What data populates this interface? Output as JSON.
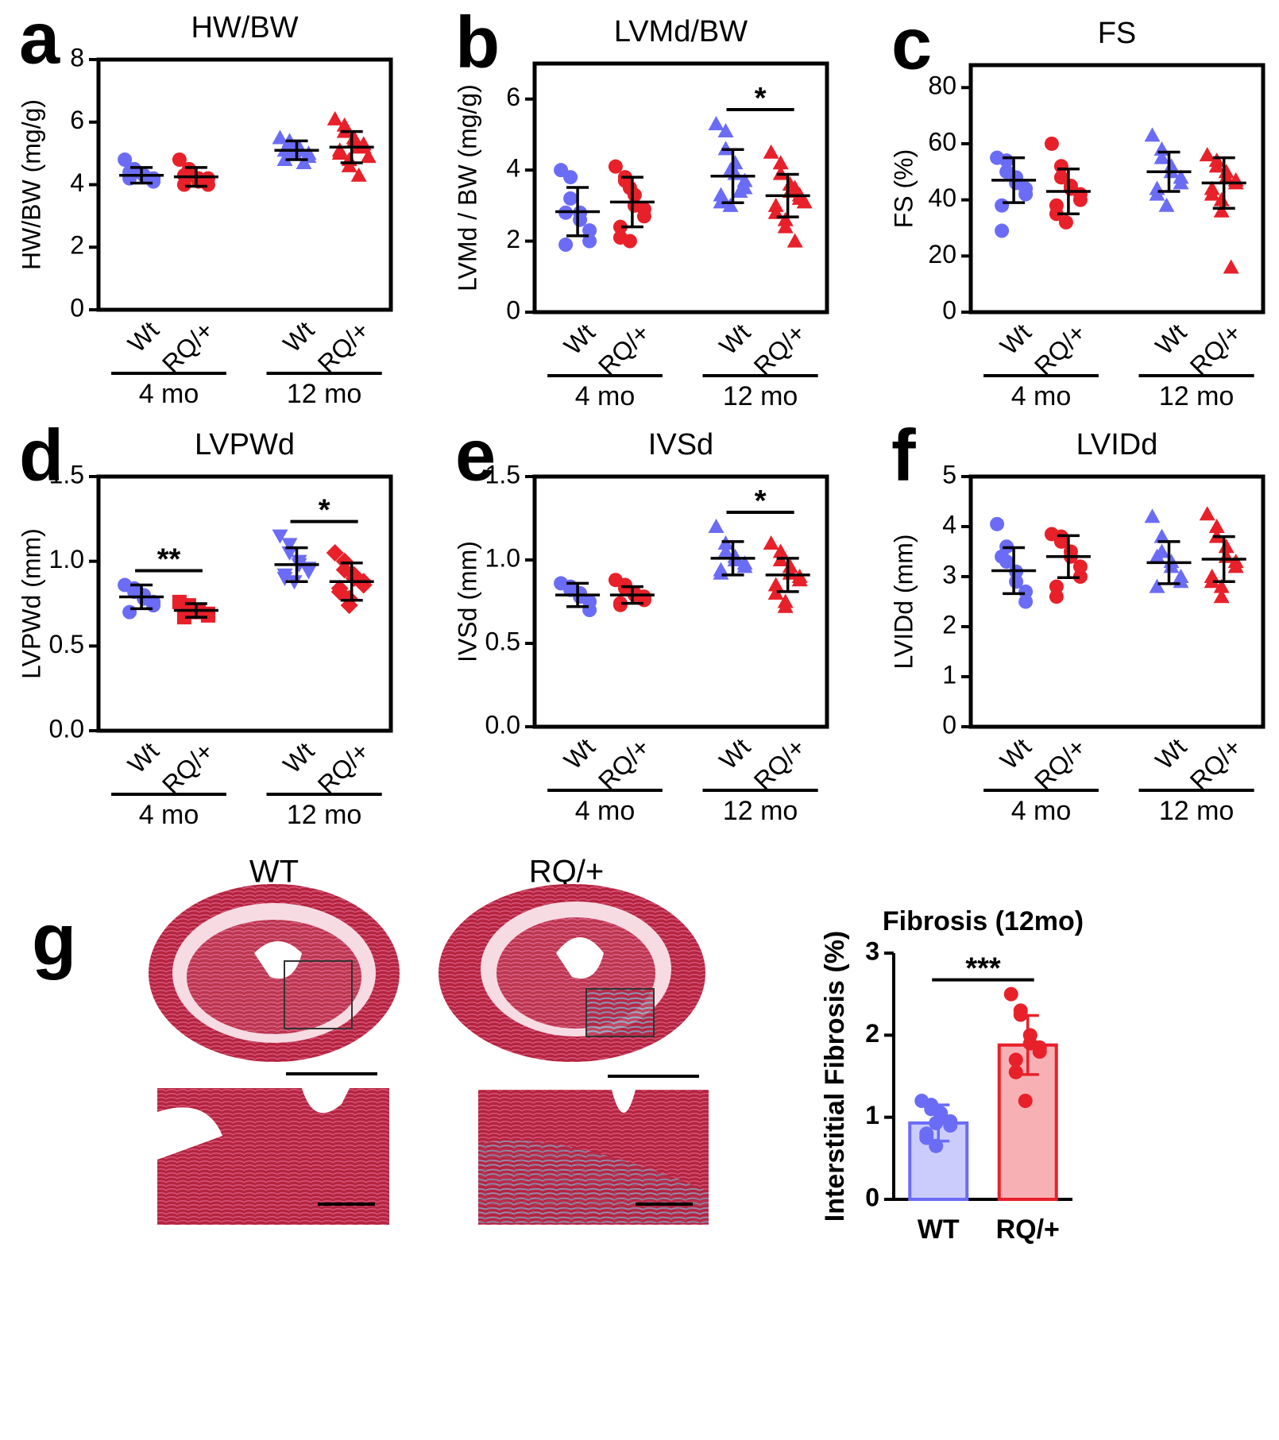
{
  "chart_data": [
    {
      "type": "dot",
      "panel_label": "a",
      "title": "HW/BW",
      "y_label": "HW/BW (mg/g)",
      "ylim": [
        0,
        8
      ],
      "yticks": [
        0,
        2,
        4,
        6,
        8
      ],
      "categories": [
        "Wt",
        "RQ/+",
        "Wt",
        "RQ/+"
      ],
      "group_labels": [
        "4 mo",
        "12 mo"
      ],
      "groups": [
        {
          "color": "#6b6cf5",
          "marker": "circle",
          "mean": 4.3,
          "sd": 0.25,
          "points": [
            4.8,
            4.5,
            4.4,
            4.3,
            4.3,
            4.2,
            4.1,
            4.2,
            4.4
          ]
        },
        {
          "color": "#e8202a",
          "marker": "circle",
          "mean": 4.25,
          "sd": 0.3,
          "points": [
            4.8,
            4.5,
            4.3,
            4.2,
            4.1,
            4.0,
            4.2,
            4.3,
            4.0
          ]
        },
        {
          "color": "#6b6cf5",
          "marker": "triangle",
          "mean": 5.1,
          "sd": 0.3,
          "points": [
            5.5,
            5.4,
            5.3,
            5.2,
            5.1,
            5.0,
            4.9,
            4.8,
            5.1,
            5.0,
            5.2,
            4.7
          ]
        },
        {
          "color": "#e8202a",
          "marker": "triangle",
          "mean": 5.2,
          "sd": 0.5,
          "points": [
            6.1,
            5.9,
            5.7,
            5.5,
            5.4,
            5.3,
            5.2,
            5.1,
            5.0,
            4.8,
            4.6,
            4.3,
            5.2,
            4.9
          ]
        }
      ],
      "significance": []
    },
    {
      "type": "dot",
      "panel_label": "b",
      "title": "LVMd/BW",
      "y_label": "LVMd / BW (mg/g)",
      "ylim": [
        0,
        7
      ],
      "yticks": [
        0,
        2,
        4,
        6
      ],
      "categories": [
        "Wt",
        "RQ/+",
        "Wt",
        "RQ/+"
      ],
      "group_labels": [
        "4 mo",
        "12 mo"
      ],
      "groups": [
        {
          "color": "#6b6cf5",
          "marker": "circle",
          "mean": 2.83,
          "sd": 0.68,
          "points": [
            4.0,
            3.8,
            3.2,
            2.8,
            2.6,
            2.3,
            2.0,
            1.9,
            2.8
          ]
        },
        {
          "color": "#e8202a",
          "marker": "circle",
          "mean": 3.1,
          "sd": 0.7,
          "points": [
            4.1,
            3.8,
            3.7,
            3.3,
            3.0,
            2.9,
            2.7,
            2.4,
            2.1,
            2.0,
            3.5
          ]
        },
        {
          "color": "#6b6cf5",
          "marker": "triangle",
          "mean": 3.83,
          "sd": 0.75,
          "points": [
            5.3,
            5.1,
            4.6,
            4.2,
            3.9,
            3.7,
            3.5,
            3.3,
            3.1,
            3.0,
            4.0,
            3.4
          ]
        },
        {
          "color": "#e8202a",
          "marker": "triangle",
          "mean": 3.28,
          "sd": 0.6,
          "points": [
            4.5,
            4.2,
            3.9,
            3.6,
            3.4,
            3.3,
            3.2,
            3.0,
            2.8,
            2.6,
            2.4,
            2.0,
            3.5,
            3.1
          ]
        }
      ],
      "significance": [
        {
          "label": "*",
          "between": [
            2,
            3
          ]
        }
      ]
    },
    {
      "type": "dot",
      "panel_label": "c",
      "title": "FS",
      "y_label": "FS (%)",
      "ylim": [
        0,
        88
      ],
      "yticks": [
        0,
        20,
        40,
        60,
        80
      ],
      "categories": [
        "Wt",
        "RQ/+",
        "Wt",
        "RQ/+"
      ],
      "group_labels": [
        "4 mo",
        "12 mo"
      ],
      "groups": [
        {
          "color": "#6b6cf5",
          "marker": "circle",
          "mean": 47,
          "sd": 8,
          "points": [
            55,
            54,
            50,
            48,
            46,
            44,
            42,
            38,
            29
          ]
        },
        {
          "color": "#e8202a",
          "marker": "circle",
          "mean": 43,
          "sd": 8,
          "points": [
            60,
            52,
            48,
            45,
            44,
            42,
            40,
            38,
            35,
            32
          ]
        },
        {
          "color": "#6b6cf5",
          "marker": "triangle",
          "mean": 50,
          "sd": 7,
          "points": [
            63,
            58,
            55,
            52,
            50,
            48,
            46,
            44,
            42,
            38
          ]
        },
        {
          "color": "#e8202a",
          "marker": "triangle",
          "mean": 46,
          "sd": 9,
          "points": [
            56,
            54,
            52,
            50,
            48,
            47,
            46,
            44,
            42,
            40,
            36,
            16
          ]
        }
      ],
      "significance": []
    },
    {
      "type": "dot",
      "panel_label": "d",
      "title": "LVPWd",
      "y_label": "LVPWd (mm)",
      "ylim": [
        0,
        1.5
      ],
      "yticks": [
        {
          "value": 0,
          "label": "0.0"
        },
        0.5,
        {
          "value": 1,
          "label": "1.0"
        },
        1.5
      ],
      "categories": [
        "Wt",
        "RQ/+",
        "Wt",
        "RQ/+"
      ],
      "group_labels": [
        "4 mo",
        "12 mo"
      ],
      "groups": [
        {
          "color": "#6b6cf5",
          "marker": "circle",
          "mean": 0.79,
          "sd": 0.07,
          "points": [
            0.86,
            0.84,
            0.82,
            0.8,
            0.78,
            0.76,
            0.74,
            0.7
          ]
        },
        {
          "color": "#e8202a",
          "marker": "square",
          "mean": 0.71,
          "sd": 0.04,
          "points": [
            0.76,
            0.74,
            0.72,
            0.71,
            0.7,
            0.69,
            0.68,
            0.67
          ]
        },
        {
          "color": "#6b6cf5",
          "marker": "triangle-down",
          "mean": 0.98,
          "sd": 0.1,
          "points": [
            1.15,
            1.1,
            1.05,
            1.0,
            0.98,
            0.96,
            0.94,
            0.92,
            0.9,
            0.88
          ]
        },
        {
          "color": "#e8202a",
          "marker": "diamond",
          "mean": 0.88,
          "sd": 0.11,
          "points": [
            1.05,
            1.0,
            0.95,
            0.92,
            0.9,
            0.88,
            0.86,
            0.84,
            0.82,
            0.78,
            0.74
          ]
        }
      ],
      "significance": [
        {
          "label": "**",
          "between": [
            0,
            1
          ]
        },
        {
          "label": "*",
          "between": [
            2,
            3
          ]
        }
      ]
    },
    {
      "type": "dot",
      "panel_label": "e",
      "title": "IVSd",
      "y_label": "IVSd (mm)",
      "ylim": [
        0,
        1.5
      ],
      "yticks": [
        {
          "value": 0,
          "label": "0.0"
        },
        0.5,
        {
          "value": 1,
          "label": "1.0"
        },
        1.5
      ],
      "categories": [
        "Wt",
        "RQ/+",
        "Wt",
        "RQ/+"
      ],
      "group_labels": [
        "4 mo",
        "12 mo"
      ],
      "groups": [
        {
          "color": "#6b6cf5",
          "marker": "circle",
          "mean": 0.79,
          "sd": 0.07,
          "points": [
            0.86,
            0.84,
            0.82,
            0.8,
            0.78,
            0.75,
            0.7
          ]
        },
        {
          "color": "#e8202a",
          "marker": "circle",
          "mean": 0.79,
          "sd": 0.05,
          "points": [
            0.88,
            0.85,
            0.83,
            0.8,
            0.79,
            0.78,
            0.76,
            0.74,
            0.73
          ]
        },
        {
          "color": "#6b6cf5",
          "marker": "triangle",
          "mean": 1.01,
          "sd": 0.1,
          "points": [
            1.2,
            1.1,
            1.05,
            1.02,
            1.0,
            0.98,
            0.96,
            0.94,
            0.92
          ]
        },
        {
          "color": "#e8202a",
          "marker": "triangle",
          "mean": 0.91,
          "sd": 0.1,
          "points": [
            1.1,
            1.05,
            1.0,
            0.96,
            0.92,
            0.9,
            0.88,
            0.85,
            0.8,
            0.75,
            0.72
          ]
        }
      ],
      "significance": [
        {
          "label": "*",
          "between": [
            2,
            3
          ]
        }
      ]
    },
    {
      "type": "dot",
      "panel_label": "f",
      "title": "LVIDd",
      "y_label": "LVIDd (mm)",
      "ylim": [
        0,
        5
      ],
      "yticks": [
        0,
        1,
        2,
        3,
        4,
        5
      ],
      "categories": [
        "Wt",
        "RQ/+",
        "Wt",
        "RQ/+"
      ],
      "group_labels": [
        "4 mo",
        "12 mo"
      ],
      "groups": [
        {
          "color": "#6b6cf5",
          "marker": "circle",
          "mean": 3.12,
          "sd": 0.46,
          "points": [
            4.05,
            3.6,
            3.3,
            3.1,
            2.9,
            2.7,
            2.5,
            3.4
          ]
        },
        {
          "color": "#e8202a",
          "marker": "circle",
          "mean": 3.4,
          "sd": 0.42,
          "points": [
            3.85,
            3.8,
            3.7,
            3.5,
            3.4,
            3.2,
            3.0,
            2.8,
            2.6
          ]
        },
        {
          "color": "#6b6cf5",
          "marker": "triangle",
          "mean": 3.28,
          "sd": 0.42,
          "points": [
            4.2,
            3.8,
            3.5,
            3.3,
            3.2,
            3.0,
            2.9,
            2.8,
            3.4
          ]
        },
        {
          "color": "#e8202a",
          "marker": "triangle",
          "mean": 3.35,
          "sd": 0.45,
          "points": [
            4.25,
            4.0,
            3.8,
            3.6,
            3.4,
            3.3,
            3.2,
            3.0,
            2.9,
            2.8,
            2.6
          ]
        }
      ],
      "significance": []
    },
    {
      "type": "bar",
      "title": "Fibrosis (12mo)",
      "y_label": "Interstitial Fibrosis (%)",
      "ylim": [
        0,
        3
      ],
      "yticks": [
        0,
        1,
        2,
        3
      ],
      "categories": [
        "WT",
        "RQ/+"
      ],
      "groups": [
        {
          "color": "#6b6cf5",
          "marker": "circle",
          "mean": 0.93,
          "sd": 0.22,
          "points": [
            1.2,
            1.15,
            1.1,
            1.05,
            1.0,
            0.95,
            0.9,
            0.8,
            0.75,
            0.65,
            0.93
          ]
        },
        {
          "color": "#e8202a",
          "marker": "circle",
          "mean": 1.88,
          "sd": 0.36,
          "points": [
            2.5,
            2.3,
            2.25,
            2.0,
            1.9,
            1.85,
            1.8,
            1.7,
            1.55,
            1.2
          ]
        }
      ],
      "significance": [
        {
          "label": "***",
          "between": [
            0,
            1
          ]
        }
      ]
    }
  ],
  "histology": {
    "panel_label": "g",
    "labels": [
      "WT",
      "RQ/+"
    ]
  }
}
